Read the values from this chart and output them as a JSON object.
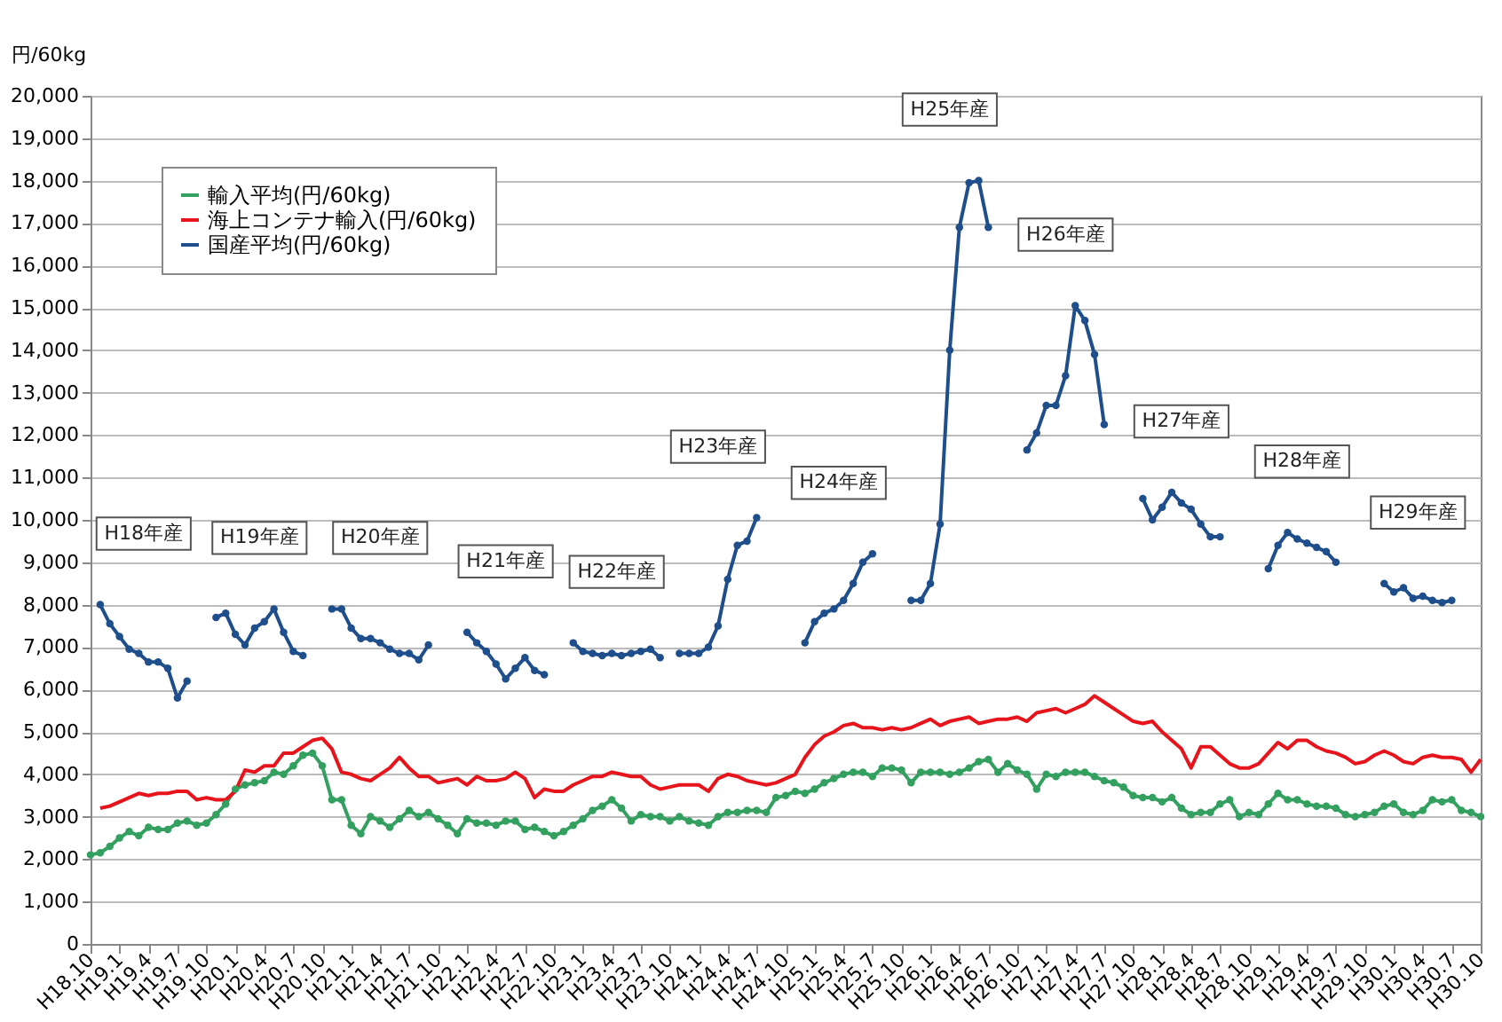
{
  "chart_data": {
    "type": "line",
    "ylabel": "円/60kg",
    "categories": [
      "H18.10",
      null,
      null,
      "H19.1",
      null,
      null,
      "H19.4",
      null,
      null,
      "H19.7",
      null,
      null,
      "H19.10",
      null,
      null,
      "H20.1",
      null,
      null,
      "H20.4",
      null,
      null,
      "H20.7",
      null,
      null,
      "H20.10",
      null,
      null,
      "H21.1",
      null,
      null,
      "H21.4",
      null,
      null,
      "H21.7",
      null,
      null,
      "H21.10",
      null,
      null,
      "H22.1",
      null,
      null,
      "H22.4",
      null,
      null,
      "H22.7",
      null,
      null,
      "H22.10",
      null,
      null,
      "H23.1",
      null,
      null,
      "H23.4",
      null,
      null,
      "H23.7",
      null,
      null,
      "H23.10",
      null,
      null,
      "H24.1",
      null,
      null,
      "H24.4",
      null,
      null,
      "H24.7",
      null,
      null,
      "H24.10",
      null,
      null,
      "H25.1",
      null,
      null,
      "H25.4",
      null,
      null,
      "H25.7",
      null,
      null,
      "H25.10",
      null,
      null,
      "H26.1",
      null,
      null,
      "H26.4",
      null,
      null,
      "H26.7",
      null,
      null,
      "H26.10",
      null,
      null,
      "H27.1",
      null,
      null,
      "H27.4",
      null,
      null,
      "H27.7",
      null,
      null,
      "H27.10",
      null,
      null,
      "H28.1",
      null,
      null,
      "H28.4",
      null,
      null,
      "H28.7",
      null,
      null,
      "H28.10",
      null,
      null,
      "H29.1",
      null,
      null,
      "H29.4",
      null,
      null,
      "H29.7",
      null,
      null,
      "H29.10",
      null,
      null,
      "H30.1",
      null,
      null,
      "H30.4",
      null,
      null,
      "H30.7",
      null,
      null,
      "H30.10"
    ],
    "series": [
      {
        "name": "輸入平均(円/60kg)",
        "color": "#33a060",
        "marker": "circle",
        "values": [
          2100,
          2150,
          2300,
          2500,
          2650,
          2550,
          2750,
          2700,
          2700,
          2850,
          2900,
          2800,
          2850,
          3050,
          3300,
          3650,
          3750,
          3800,
          3850,
          4050,
          4000,
          4200,
          4450,
          4500,
          4200,
          3400,
          3400,
          2800,
          2600,
          3000,
          2900,
          2750,
          2950,
          3150,
          3000,
          3100,
          2950,
          2800,
          2600,
          2950,
          2850,
          2850,
          2800,
          2900,
          2900,
          2700,
          2750,
          2650,
          2550,
          2650,
          2800,
          2950,
          3150,
          3250,
          3400,
          3200,
          2900,
          3050,
          3000,
          3000,
          2900,
          3000,
          2900,
          2850,
          2800,
          3000,
          3100,
          3100,
          3150,
          3150,
          3100,
          3450,
          3500,
          3600,
          3550,
          3650,
          3800,
          3900,
          4000,
          4050,
          4050,
          3950,
          4150,
          4150,
          4100,
          3800,
          4050,
          4050,
          4050,
          4000,
          4050,
          4150,
          4300,
          4350,
          4050,
          4250,
          4100,
          4000,
          3650,
          4000,
          3950,
          4050,
          4050,
          4050,
          3950,
          3850,
          3800,
          3700,
          3500,
          3450,
          3450,
          3350,
          3450,
          3200,
          3050,
          3100,
          3100,
          3300,
          3400,
          3000,
          3100,
          3050,
          3300,
          3550,
          3400,
          3400,
          3300,
          3250,
          3250,
          3200,
          3050,
          3000,
          3050,
          3100,
          3250,
          3300,
          3100,
          3050,
          3150,
          3400,
          3350,
          3400,
          3150,
          3100,
          3000
        ]
      },
      {
        "name": "海上コンテナ輸入(円/60kg)",
        "color": "#e8141c",
        "marker": "none",
        "values": [
          null,
          3200,
          3250,
          3350,
          3450,
          3550,
          3500,
          3550,
          3550,
          3600,
          3600,
          3400,
          3450,
          3400,
          3400,
          3600,
          4100,
          4050,
          4200,
          4200,
          4500,
          4500,
          4650,
          4800,
          4850,
          4600,
          4050,
          4000,
          3900,
          3850,
          4000,
          4150,
          4400,
          4150,
          3950,
          3950,
          3800,
          3850,
          3900,
          3750,
          3950,
          3850,
          3850,
          3900,
          4050,
          3900,
          3450,
          3650,
          3600,
          3600,
          3750,
          3850,
          3950,
          3950,
          4050,
          4000,
          3950,
          3950,
          3750,
          3650,
          3700,
          3750,
          3750,
          3750,
          3600,
          3900,
          4000,
          3950,
          3850,
          3800,
          3750,
          3800,
          3900,
          4000,
          4400,
          4700,
          4900,
          5000,
          5150,
          5200,
          5100,
          5100,
          5050,
          5100,
          5050,
          5100,
          5200,
          5300,
          5150,
          5250,
          5300,
          5350,
          5200,
          5250,
          5300,
          5300,
          5350,
          5250,
          5450,
          5500,
          5550,
          5450,
          5550,
          5650,
          5850,
          5700,
          5550,
          5400,
          5250,
          5200,
          5250,
          5000,
          4800,
          4600,
          4150,
          4650,
          4650,
          4450,
          4250,
          4150,
          4150,
          4250,
          4500,
          4750,
          4600,
          4800,
          4800,
          4650,
          4550,
          4500,
          4400,
          4250,
          4300,
          4450,
          4550,
          4450,
          4300,
          4250,
          4400,
          4450,
          4400,
          4400,
          4350,
          4050,
          4350
        ]
      },
      {
        "name": "国産平均(円/60kg)",
        "color": "#1f4e8c",
        "marker": "circle",
        "values": [
          null,
          8000,
          7550,
          7250,
          6950,
          6850,
          6650,
          6650,
          6500,
          5800,
          6200,
          null,
          null,
          7700,
          7800,
          7300,
          7050,
          7450,
          7600,
          7900,
          7350,
          6900,
          6800,
          null,
          null,
          7900,
          7900,
          7450,
          7200,
          7200,
          7100,
          6950,
          6850,
          6850,
          6700,
          7050,
          null,
          null,
          null,
          7350,
          7100,
          6900,
          6600,
          6250,
          6500,
          6750,
          6450,
          6350,
          null,
          null,
          7100,
          6900,
          6850,
          6800,
          6850,
          6800,
          6850,
          6900,
          6950,
          6750,
          null,
          6850,
          6850,
          6850,
          7000,
          7500,
          8600,
          9400,
          9500,
          10050,
          null,
          null,
          null,
          null,
          7100,
          7600,
          7800,
          7900,
          8100,
          8500,
          9000,
          9200,
          null,
          null,
          null,
          8100,
          8100,
          8500,
          9900,
          14000,
          16900,
          17950,
          18000,
          16900,
          null,
          null,
          null,
          11650,
          12050,
          12700,
          12700,
          13400,
          15050,
          14700,
          13900,
          12250,
          null,
          null,
          null,
          10500,
          10000,
          10300,
          10650,
          10400,
          10250,
          9900,
          9600,
          9600,
          null,
          null,
          null,
          null,
          8850,
          9400,
          9700,
          9550,
          9450,
          9350,
          9250,
          9000,
          null,
          null,
          null,
          null,
          8500,
          8300,
          8400,
          8150,
          8200,
          8100,
          8050,
          8100,
          null,
          null,
          null
        ]
      }
    ],
    "ylim": [
      0,
      20000
    ],
    "yticks": [
      {
        "value": 0,
        "label": "0"
      },
      {
        "value": 1000,
        "label": "1,000"
      },
      {
        "value": 2000,
        "label": "2,000"
      },
      {
        "value": 3000,
        "label": "3,000"
      },
      {
        "value": 4000,
        "label": "4,000"
      },
      {
        "value": 5000,
        "label": "5,000"
      },
      {
        "value": 6000,
        "label": "6,000"
      },
      {
        "value": 7000,
        "label": "7,000"
      },
      {
        "value": 8000,
        "label": "8,000"
      },
      {
        "value": 9000,
        "label": "9,000"
      },
      {
        "value": 10000,
        "label": "10,000"
      },
      {
        "value": 11000,
        "label": "11,000"
      },
      {
        "value": 12000,
        "label": "12,000"
      },
      {
        "value": 13000,
        "label": "13,000"
      },
      {
        "value": 14000,
        "label": "14,000"
      },
      {
        "value": 15000,
        "label": "15,000"
      },
      {
        "value": 16000,
        "label": "16,000"
      },
      {
        "value": 17000,
        "label": "17,000"
      },
      {
        "value": 18000,
        "label": "18,000"
      },
      {
        "value": 19000,
        "label": "19,000"
      },
      {
        "value": 20000,
        "label": "20,000"
      }
    ],
    "grid": "y",
    "legend": "top left",
    "line_style": "solid",
    "annotations": [
      "H18年産",
      "H19年産",
      "H20年産",
      "H21年産",
      "H22年産",
      "H23年産",
      "H24年産",
      "H25年産",
      "H26年産",
      "H27年産",
      "H28年産",
      "H29年産"
    ]
  }
}
